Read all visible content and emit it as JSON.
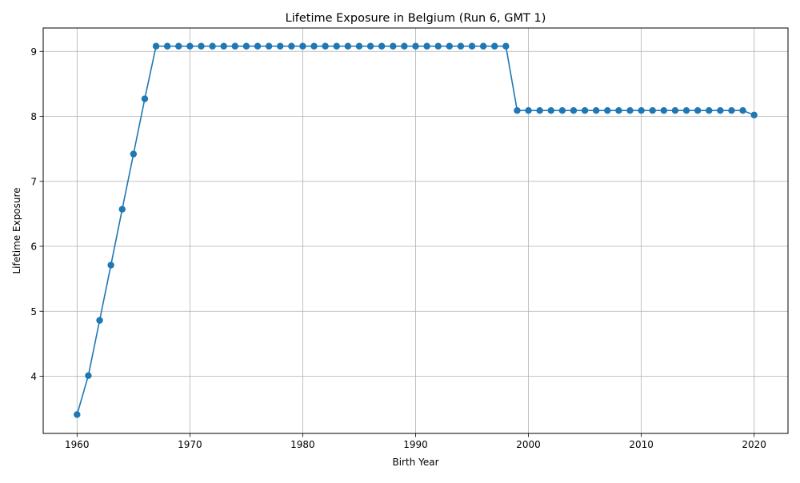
{
  "chart_data": {
    "type": "line",
    "title": "Lifetime Exposure in Belgium (Run 6, GMT 1)",
    "xlabel": "Birth Year",
    "ylabel": "Lifetime Exposure",
    "xlim": [
      1957,
      2023
    ],
    "ylim": [
      3.12,
      9.36
    ],
    "xticks": [
      1960,
      1970,
      1980,
      1990,
      2000,
      2010,
      2020
    ],
    "yticks": [
      4,
      5,
      6,
      7,
      8,
      9
    ],
    "grid": true,
    "marker": "circle",
    "color": "#1f77b4",
    "series": [
      {
        "x": [
          1960,
          1961,
          1962,
          1963,
          1964,
          1965,
          1966,
          1967,
          1968,
          1969,
          1970,
          1971,
          1972,
          1973,
          1974,
          1975,
          1976,
          1977,
          1978,
          1979,
          1980,
          1981,
          1982,
          1983,
          1984,
          1985,
          1986,
          1987,
          1988,
          1989,
          1990,
          1991,
          1992,
          1993,
          1994,
          1995,
          1996,
          1997,
          1998,
          1999,
          2000,
          2001,
          2002,
          2003,
          2004,
          2005,
          2006,
          2007,
          2008,
          2009,
          2010,
          2011,
          2012,
          2013,
          2014,
          2015,
          2016,
          2017,
          2018,
          2019,
          2020
        ],
        "values": [
          3.41,
          4.01,
          4.86,
          5.71,
          6.57,
          7.42,
          8.27,
          9.08,
          9.08,
          9.08,
          9.08,
          9.08,
          9.08,
          9.08,
          9.08,
          9.08,
          9.08,
          9.08,
          9.08,
          9.08,
          9.08,
          9.08,
          9.08,
          9.08,
          9.08,
          9.08,
          9.08,
          9.08,
          9.08,
          9.08,
          9.08,
          9.08,
          9.08,
          9.08,
          9.08,
          9.08,
          9.08,
          9.08,
          9.08,
          8.09,
          8.09,
          8.09,
          8.09,
          8.09,
          8.09,
          8.09,
          8.09,
          8.09,
          8.09,
          8.09,
          8.09,
          8.09,
          8.09,
          8.09,
          8.09,
          8.09,
          8.09,
          8.09,
          8.09,
          8.09,
          8.02
        ]
      }
    ]
  }
}
